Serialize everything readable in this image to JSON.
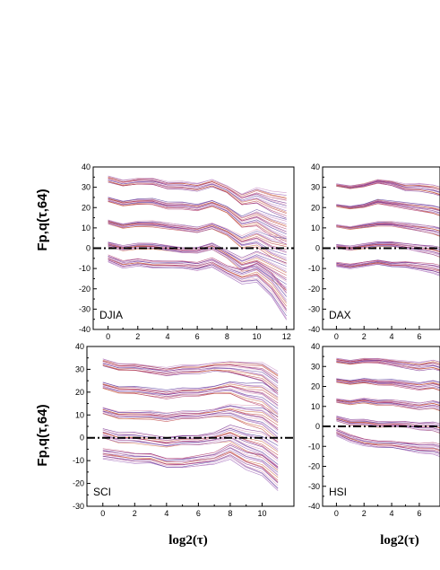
{
  "chart_data": [
    {
      "type": "line",
      "panel_label": "DJIA",
      "ylabel": "Fp,q(τ,64)",
      "xlabel": "",
      "xlim": [
        -1,
        12.5
      ],
      "ylim": [
        -40,
        40
      ],
      "xticks": [
        0,
        2,
        4,
        6,
        8,
        10,
        12
      ],
      "yticks": [
        -40,
        -30,
        -20,
        -10,
        0,
        10,
        20,
        30,
        40
      ],
      "reference_line": {
        "y": 0,
        "style": "dash-dot"
      },
      "x": [
        0,
        1,
        2,
        3,
        4,
        5,
        6,
        7,
        8,
        9,
        10,
        11,
        12
      ],
      "bands": [
        {
          "values": [
            34,
            32,
            33,
            33,
            31,
            31,
            30,
            32,
            29,
            24,
            26,
            23,
            21
          ],
          "spread_start": 1.5,
          "spread_end": 2.0,
          "tail_drop": 8
        },
        {
          "values": [
            24,
            22,
            23,
            23,
            21,
            21,
            20,
            22,
            19,
            13,
            15,
            11,
            8
          ],
          "spread_start": 1.2,
          "spread_end": 2.0,
          "tail_drop": 8
        },
        {
          "values": [
            13,
            11,
            12,
            12,
            11,
            10,
            9,
            11,
            8,
            3,
            5,
            1,
            -1
          ],
          "spread_start": 1.0,
          "spread_end": 2.0,
          "tail_drop": 9
        },
        {
          "values": [
            2,
            0,
            1,
            1,
            0,
            -1,
            -1,
            1,
            -3,
            -8,
            -6,
            -10,
            -14
          ],
          "spread_start": 1.0,
          "spread_end": 2.0,
          "tail_drop": 10
        },
        {
          "values": [
            -5,
            -8,
            -7,
            -8,
            -8,
            -8,
            -9,
            -7,
            -11,
            -14,
            -12,
            -18,
            -28
          ],
          "spread_start": 1.5,
          "spread_end": 2.5,
          "tail_drop": 10
        }
      ]
    },
    {
      "type": "line",
      "panel_label": "DAX",
      "ylabel": "",
      "xlabel": "",
      "xlim": [
        -1,
        7.5
      ],
      "ylim": [
        -40,
        40
      ],
      "xticks": [
        0,
        2,
        4,
        6
      ],
      "yticks": [
        -40,
        -30,
        -20,
        -10,
        0,
        10,
        20,
        30,
        40
      ],
      "reference_line": {
        "y": 0,
        "style": "dash-dot"
      },
      "x": [
        0,
        1,
        2,
        3,
        4,
        5,
        6,
        7,
        8
      ],
      "bands": [
        {
          "values": [
            31,
            30,
            31,
            33,
            32,
            30,
            30,
            29,
            27
          ],
          "spread_start": 0.5,
          "spread_end": 1.5,
          "tail_drop": 2
        },
        {
          "values": [
            21,
            20,
            21,
            23,
            22,
            21,
            20,
            19,
            17
          ],
          "spread_start": 0.5,
          "spread_end": 1.5,
          "tail_drop": 2
        },
        {
          "values": [
            11,
            10,
            11,
            12,
            12,
            11,
            10,
            9,
            7
          ],
          "spread_start": 0.5,
          "spread_end": 1.5,
          "tail_drop": 2
        },
        {
          "values": [
            1,
            0,
            1,
            2,
            2,
            1,
            0,
            -1,
            -3
          ],
          "spread_start": 0.8,
          "spread_end": 1.5,
          "tail_drop": 2
        },
        {
          "values": [
            -8,
            -9,
            -8,
            -7,
            -8,
            -8,
            -9,
            -10,
            -12
          ],
          "spread_start": 0.8,
          "spread_end": 1.5,
          "tail_drop": 2
        }
      ]
    },
    {
      "type": "line",
      "panel_label": "SCI",
      "ylabel": "Fp,q(τ,64)",
      "xlabel": "log2(τ)",
      "xlim": [
        -1,
        12
      ],
      "ylim": [
        -30,
        40
      ],
      "xticks": [
        0,
        2,
        4,
        6,
        8,
        10
      ],
      "yticks": [
        -30,
        -20,
        -10,
        0,
        10,
        20,
        30,
        40
      ],
      "reference_line": {
        "y": 0,
        "style": "dash-dot"
      },
      "x": [
        0,
        1,
        2,
        3,
        4,
        5,
        6,
        7,
        8,
        9,
        10,
        11
      ],
      "bands": [
        {
          "values": [
            33,
            31,
            31,
            30,
            29,
            30,
            30,
            31,
            31,
            30,
            29,
            24
          ],
          "spread_start": 1.5,
          "spread_end": 2.0,
          "tail_drop": 6
        },
        {
          "values": [
            23,
            21,
            21,
            20,
            19,
            20,
            20,
            21,
            22,
            20,
            19,
            14
          ],
          "spread_start": 1.5,
          "spread_end": 2.0,
          "tail_drop": 8
        },
        {
          "values": [
            12,
            10,
            10,
            10,
            9,
            10,
            10,
            11,
            12,
            10,
            9,
            4
          ],
          "spread_start": 1.5,
          "spread_end": 2.0,
          "tail_drop": 8
        },
        {
          "values": [
            2,
            0,
            0,
            -1,
            -2,
            -1,
            -1,
            0,
            2,
            -1,
            -3,
            -8
          ],
          "spread_start": 2.0,
          "spread_end": 2.5,
          "tail_drop": 8
        },
        {
          "values": [
            -7,
            -8,
            -9,
            -9,
            -11,
            -11,
            -10,
            -9,
            -6,
            -10,
            -12,
            -18
          ],
          "spread_start": 2.0,
          "spread_end": 2.5,
          "tail_drop": 6
        }
      ]
    },
    {
      "type": "line",
      "panel_label": "HSI",
      "ylabel": "",
      "xlabel": "log2(τ)",
      "xlim": [
        -1,
        7.5
      ],
      "ylim": [
        -40,
        40
      ],
      "xticks": [
        0,
        2,
        4,
        6
      ],
      "yticks": [
        -40,
        -30,
        -20,
        -10,
        0,
        10,
        20,
        30,
        40
      ],
      "reference_line": {
        "y": 0,
        "style": "dash-dot"
      },
      "x": [
        0,
        1,
        2,
        3,
        4,
        5,
        6,
        7,
        8
      ],
      "bands": [
        {
          "values": [
            33,
            32,
            33,
            33,
            32,
            31,
            30,
            31,
            29
          ],
          "spread_start": 1.0,
          "spread_end": 1.5,
          "tail_drop": 2
        },
        {
          "values": [
            23,
            22,
            23,
            22,
            22,
            21,
            20,
            21,
            19
          ],
          "spread_start": 1.0,
          "spread_end": 1.5,
          "tail_drop": 2
        },
        {
          "values": [
            13,
            12,
            13,
            12,
            12,
            11,
            10,
            11,
            9
          ],
          "spread_start": 1.0,
          "spread_end": 1.5,
          "tail_drop": 2
        },
        {
          "values": [
            4,
            2,
            2,
            1,
            1,
            1,
            0,
            0,
            -2
          ],
          "spread_start": 1.2,
          "spread_end": 1.5,
          "tail_drop": 2
        },
        {
          "values": [
            -3,
            -6,
            -8,
            -9,
            -9,
            -10,
            -11,
            -11,
            -13
          ],
          "spread_start": 1.5,
          "spread_end": 2.0,
          "tail_drop": 2
        }
      ]
    }
  ],
  "series_colors": [
    "#7b2f8e",
    "#b03a6e",
    "#c04a4a",
    "#d1744a",
    "#9a5fb5",
    "#c88fc8",
    "#5a3fa0",
    "#e0a0c0"
  ]
}
